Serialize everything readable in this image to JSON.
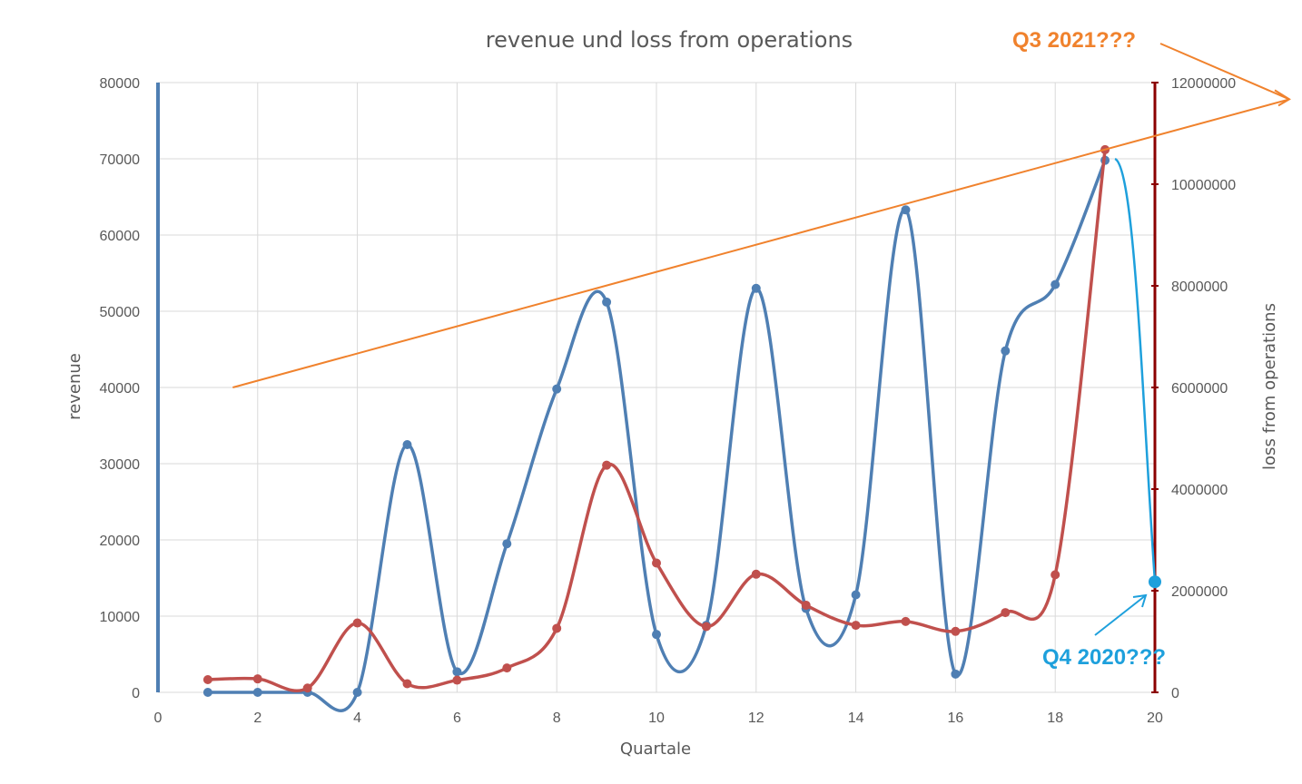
{
  "chart_data": {
    "type": "line",
    "title": "revenue und loss from operations",
    "xlabel": "Quartale",
    "ylabel": "revenue",
    "y2label": "loss from operations",
    "xlim": [
      0,
      20
    ],
    "ylim": [
      0,
      80000
    ],
    "y2lim": [
      0,
      12000000
    ],
    "x_ticks": [
      0,
      2,
      4,
      6,
      8,
      10,
      12,
      14,
      16,
      18,
      20
    ],
    "y_ticks": [
      "0",
      "10000",
      "20000",
      "30000",
      "40000",
      "50000",
      "60000",
      "70000",
      "80000"
    ],
    "y2_ticks": [
      "0",
      "2000000",
      "4000000",
      "6000000",
      "8000000",
      "10000000",
      "12000000"
    ],
    "grid": true,
    "series": [
      {
        "name": "revenue",
        "axis": "left",
        "color": "#4f7fb3",
        "x": [
          1,
          2,
          3,
          4,
          5,
          6,
          7,
          8,
          9,
          10,
          11,
          12,
          13,
          14,
          15,
          16,
          17,
          18,
          19
        ],
        "values": [
          0,
          0,
          0,
          0,
          32500,
          2700,
          19500,
          39800,
          51200,
          7600,
          8800,
          53000,
          11000,
          12800,
          63300,
          2400,
          44800,
          53500,
          69800
        ]
      },
      {
        "name": "loss from operations",
        "axis": "right",
        "color": "#c0504d",
        "x": [
          1,
          2,
          3,
          4,
          5,
          6,
          7,
          8,
          9,
          10,
          11,
          12,
          13,
          14,
          15,
          16,
          17,
          18,
          19
        ],
        "values": [
          250000,
          265000,
          85000,
          1365000,
          170000,
          240000,
          480000,
          1260000,
          4470000,
          2545000,
          1295000,
          2325000,
          1715000,
          1320000,
          1395000,
          1200000,
          1570000,
          2315000,
          10680000
        ]
      }
    ],
    "annotations": [
      {
        "text": "Q3 2021???",
        "color": "#f0822d",
        "trend_from": {
          "x": 1.5,
          "y": 40000
        },
        "trend_to": {
          "x": 20,
          "y": 73000
        }
      },
      {
        "text": "Q4 2020???",
        "color": "#1ea0dc",
        "point": {
          "x": 20,
          "y": 14500
        },
        "from": {
          "x": 19.2,
          "y": 70000
        }
      }
    ]
  }
}
